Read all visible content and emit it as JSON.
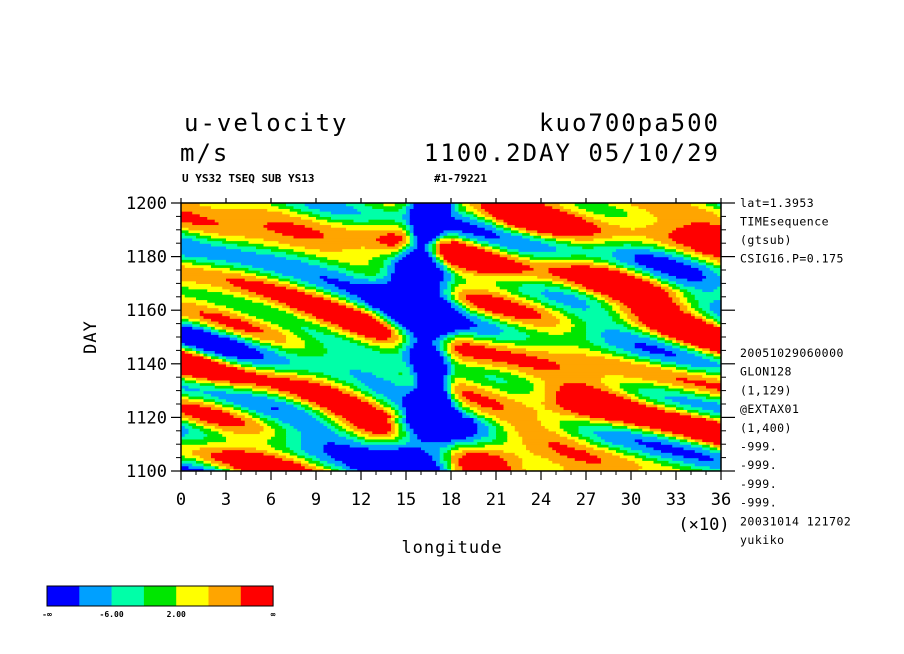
{
  "header": {
    "variable": "u-velocity",
    "units": "m/s",
    "run_name": "kuo700pa500",
    "time_info": "1100.2DAY 05/10/29",
    "sub_info": "U YS32 TSEQ SUB YS13",
    "id_info": "#1-79221"
  },
  "side_info": [
    "lat=1.3953",
    "TIMEsequence",
    "(gtsub)",
    "CSIG16.P=0.175"
  ],
  "side_info2": [
    "20051029060000",
    "GLON128",
    "(1,129)",
    "@EXTAX01",
    "(1,400)",
    "-999.",
    "-999.",
    "-999.",
    "-999.",
    "20031014 121702",
    "yukiko"
  ],
  "colors": {
    "levels": [
      "#0000ff",
      "#00a0ff",
      "#00ffa8",
      "#00e600",
      "#ffff00",
      "#ffa500",
      "#ff0000"
    ]
  },
  "colorbar": {
    "labels": [
      "-∞",
      "-6.00",
      "2.00",
      "∞"
    ]
  },
  "chart_data": {
    "type": "heatmap",
    "xlabel": "longitude",
    "ylabel": "DAY",
    "x_multiplier": "(×10)",
    "xlim": [
      0,
      36
    ],
    "ylim": [
      1100,
      1200
    ],
    "x_ticks": [
      "0",
      "3",
      "6",
      "9",
      "12",
      "15",
      "18",
      "21",
      "24",
      "27",
      "30",
      "33",
      "36"
    ],
    "y_ticks": [
      "1100",
      "1120",
      "1140",
      "1160",
      "1180",
      "1200"
    ],
    "x_tick_values": [
      0,
      3,
      6,
      9,
      12,
      15,
      18,
      21,
      24,
      27,
      30,
      33,
      36
    ],
    "y_tick_values": [
      1100,
      1120,
      1140,
      1160,
      1180,
      1200
    ],
    "features": [
      {
        "label": "strong easterly band (u < -6)",
        "x_center": 16.5,
        "x_width": 3.5,
        "y_range": [
          1100,
          1200
        ]
      },
      {
        "label": "westerly maximum",
        "x_center": 22,
        "y_center": 1190
      },
      {
        "label": "westerly maximum",
        "x_center": 27,
        "y_center": 1125
      },
      {
        "label": "westerly maximum",
        "x_center": 20.5,
        "y_center": 1105
      }
    ]
  }
}
